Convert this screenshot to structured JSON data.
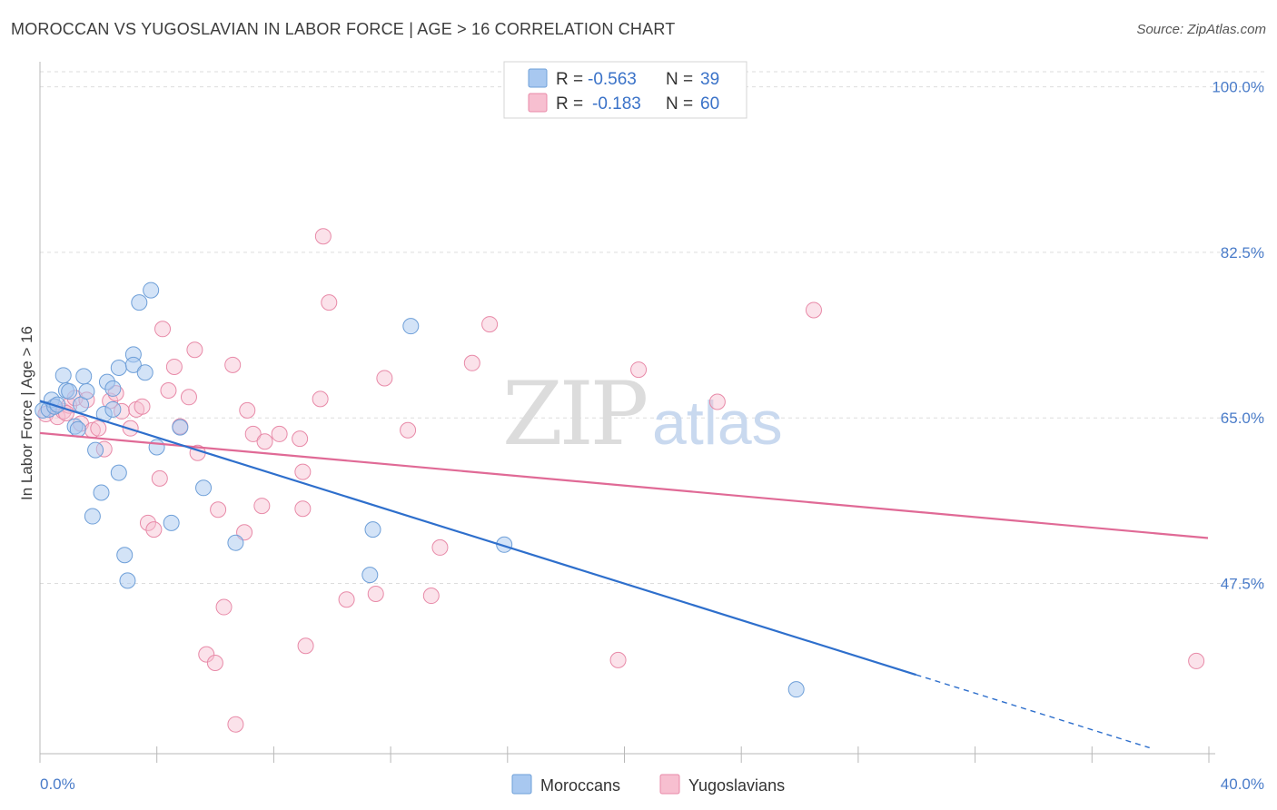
{
  "header": {
    "title": "MOROCCAN VS YUGOSLAVIAN IN LABOR FORCE | AGE > 16 CORRELATION CHART",
    "source": "Source: ZipAtlas.com"
  },
  "watermark": {
    "zip": "ZIP",
    "atlas": "atlas"
  },
  "legend": {
    "moroccans": {
      "r_label": "R = ",
      "r_value": "-0.563",
      "n_label": "N = ",
      "n_value": "39"
    },
    "yugoslavians": {
      "r_label": "R = ",
      "r_value": "-0.183",
      "n_label": "N = ",
      "n_value": "60"
    }
  },
  "colors": {
    "moroccans_fill": "#a8c8f0",
    "moroccans_stroke": "#6e9fd8",
    "moroccans_line": "#2e6fcc",
    "yugoslavians_fill": "#f7bfd0",
    "yugoslavians_stroke": "#e88aa8",
    "yugoslavians_line": "#e06a96",
    "grid": "#dddddd",
    "tick_label": "#4a7cc9"
  },
  "chart_data": {
    "type": "scatter",
    "title": "MOROCCAN VS YUGOSLAVIAN IN LABOR FORCE | AGE > 16 CORRELATION CHART",
    "xlabel": "",
    "ylabel": "In Labor Force | Age > 16",
    "xlim": [
      0,
      40
    ],
    "ylim": [
      29.5,
      101.5
    ],
    "y_ticks": [
      47.5,
      65.0,
      82.5,
      100.0
    ],
    "y_tick_labels": [
      "47.5%",
      "65.0%",
      "82.5%",
      "100.0%"
    ],
    "x_tick_labels": [
      "0.0%",
      "40.0%"
    ],
    "grid": true,
    "legend_position": "top-center",
    "series": [
      {
        "name": "Moroccans",
        "r": -0.563,
        "n": 39,
        "trend": {
          "x_start": 0.0,
          "y_start": 66.8,
          "x_end_solid": 30.0,
          "x_end": 38.0,
          "slope": -0.965
        },
        "points": [
          [
            0.1,
            65.8
          ],
          [
            0.3,
            65.9
          ],
          [
            0.4,
            66.9
          ],
          [
            0.5,
            66.2
          ],
          [
            0.6,
            66.4
          ],
          [
            0.8,
            69.5
          ],
          [
            0.9,
            67.9
          ],
          [
            1.0,
            67.8
          ],
          [
            1.2,
            64.1
          ],
          [
            1.3,
            63.8
          ],
          [
            1.4,
            66.4
          ],
          [
            1.5,
            69.4
          ],
          [
            1.6,
            67.8
          ],
          [
            1.8,
            54.6
          ],
          [
            1.9,
            61.6
          ],
          [
            2.1,
            57.1
          ],
          [
            2.2,
            65.4
          ],
          [
            2.3,
            68.8
          ],
          [
            2.5,
            65.9
          ],
          [
            2.5,
            68.1
          ],
          [
            2.7,
            59.2
          ],
          [
            2.7,
            70.3
          ],
          [
            2.9,
            50.5
          ],
          [
            3.0,
            47.8
          ],
          [
            3.2,
            71.7
          ],
          [
            3.2,
            70.6
          ],
          [
            3.4,
            77.2
          ],
          [
            3.6,
            69.8
          ],
          [
            3.8,
            78.5
          ],
          [
            4.0,
            61.9
          ],
          [
            4.5,
            53.9
          ],
          [
            4.8,
            64.0
          ],
          [
            5.6,
            57.6
          ],
          [
            6.7,
            51.8
          ],
          [
            11.4,
            53.2
          ],
          [
            11.3,
            48.4
          ],
          [
            12.7,
            74.7
          ],
          [
            15.9,
            51.6
          ],
          [
            25.9,
            36.3
          ]
        ]
      },
      {
        "name": "Yugoslavians",
        "r": -0.183,
        "n": 60,
        "trend": {
          "x_start": 0.0,
          "y_start": 63.4,
          "x_end": 40.0,
          "y_end": 52.3
        },
        "points": [
          [
            0.2,
            65.4
          ],
          [
            0.5,
            66.2
          ],
          [
            0.6,
            65.1
          ],
          [
            0.8,
            65.7
          ],
          [
            1.0,
            66.3
          ],
          [
            1.2,
            67.1
          ],
          [
            1.4,
            64.4
          ],
          [
            1.6,
            66.9
          ],
          [
            1.8,
            63.7
          ],
          [
            2.0,
            63.9
          ],
          [
            2.2,
            61.7
          ],
          [
            2.4,
            66.8
          ],
          [
            2.6,
            67.6
          ],
          [
            2.8,
            65.7
          ],
          [
            3.1,
            63.9
          ],
          [
            3.3,
            65.9
          ],
          [
            3.5,
            66.2
          ],
          [
            3.7,
            53.9
          ],
          [
            3.9,
            53.2
          ],
          [
            4.1,
            58.6
          ],
          [
            4.2,
            74.4
          ],
          [
            4.4,
            67.9
          ],
          [
            4.6,
            70.4
          ],
          [
            4.8,
            64.1
          ],
          [
            5.1,
            67.2
          ],
          [
            5.3,
            72.2
          ],
          [
            5.4,
            61.3
          ],
          [
            5.7,
            40.0
          ],
          [
            6.0,
            39.1
          ],
          [
            6.1,
            55.3
          ],
          [
            6.3,
            45.0
          ],
          [
            6.6,
            70.6
          ],
          [
            6.7,
            32.6
          ],
          [
            7.0,
            52.9
          ],
          [
            7.1,
            65.8
          ],
          [
            7.3,
            63.3
          ],
          [
            7.6,
            55.7
          ],
          [
            7.7,
            62.5
          ],
          [
            8.2,
            63.3
          ],
          [
            8.9,
            62.8
          ],
          [
            9.0,
            59.3
          ],
          [
            9.0,
            55.4
          ],
          [
            9.1,
            40.9
          ],
          [
            9.6,
            67.0
          ],
          [
            9.7,
            84.2
          ],
          [
            9.9,
            77.2
          ],
          [
            10.5,
            45.8
          ],
          [
            11.5,
            46.4
          ],
          [
            11.8,
            69.2
          ],
          [
            12.6,
            63.7
          ],
          [
            13.4,
            46.2
          ],
          [
            13.7,
            51.3
          ],
          [
            14.8,
            70.8
          ],
          [
            15.4,
            74.9
          ],
          [
            19.8,
            39.4
          ],
          [
            20.5,
            70.1
          ],
          [
            23.2,
            66.7
          ],
          [
            26.5,
            76.4
          ],
          [
            39.6,
            39.3
          ],
          [
            0.9,
            65.5
          ]
        ]
      }
    ]
  }
}
